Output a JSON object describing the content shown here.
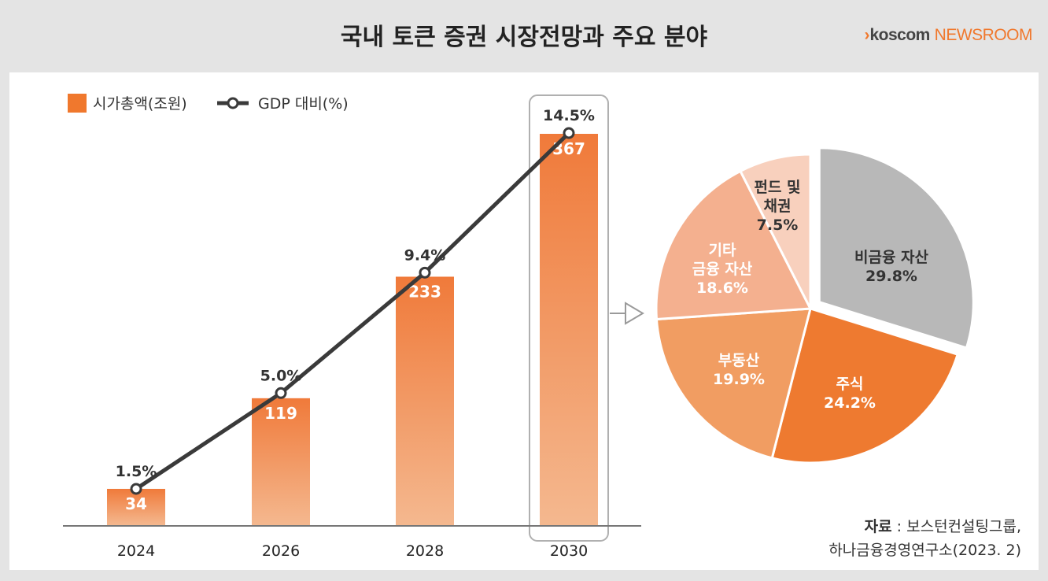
{
  "header": {
    "title": "국내 토큰 증권 시장전망과 주요 분야",
    "logo_prefix": "›",
    "logo_brand": "koscom",
    "logo_suffix": "NEWSROOM"
  },
  "source": {
    "label": "자료",
    "line1": " : 보스턴컨설팅그룹,",
    "line2": "하나금융경영연구소(2023. 2)"
  },
  "colors": {
    "accent": "#f0782d",
    "bar_top": "#f07a3a",
    "bar_bottom": "#f4b88f",
    "line": "#3a3a3a",
    "pie": [
      "#b8b8b8",
      "#ee7a30",
      "#f19d62",
      "#f4b08f",
      "#f8d0bd"
    ]
  },
  "chart_data": [
    {
      "type": "bar",
      "categories": [
        "2024",
        "2026",
        "2028",
        "2030"
      ],
      "series": [
        {
          "name": "시가총액(조원)",
          "values": [
            34,
            119,
            233,
            367
          ],
          "labels": [
            "34",
            "119",
            "233",
            "367"
          ]
        },
        {
          "name": "GDP 대비(%)",
          "type": "line",
          "values": [
            1.5,
            5.0,
            9.4,
            14.5
          ],
          "labels": [
            "1.5%",
            "5.0%",
            "9.4%",
            "14.5%"
          ]
        }
      ],
      "highlight_category": "2030",
      "grid": false,
      "legend": "top-left"
    },
    {
      "type": "pie",
      "slices": [
        {
          "name": "비금융 자산",
          "value": 29.8,
          "label": "29.8%",
          "exploded": true
        },
        {
          "name": "주식",
          "value": 24.2,
          "label": "24.2%"
        },
        {
          "name": "부동산",
          "value": 19.9,
          "label": "19.9%"
        },
        {
          "name": "기타 금융 자산",
          "name_lines": [
            "기타",
            "금융 자산"
          ],
          "value": 18.6,
          "label": "18.6%"
        },
        {
          "name": "펀드 및 채권",
          "name_lines": [
            "펀드 및",
            "채권"
          ],
          "value": 7.5,
          "label": "7.5%"
        }
      ]
    }
  ]
}
